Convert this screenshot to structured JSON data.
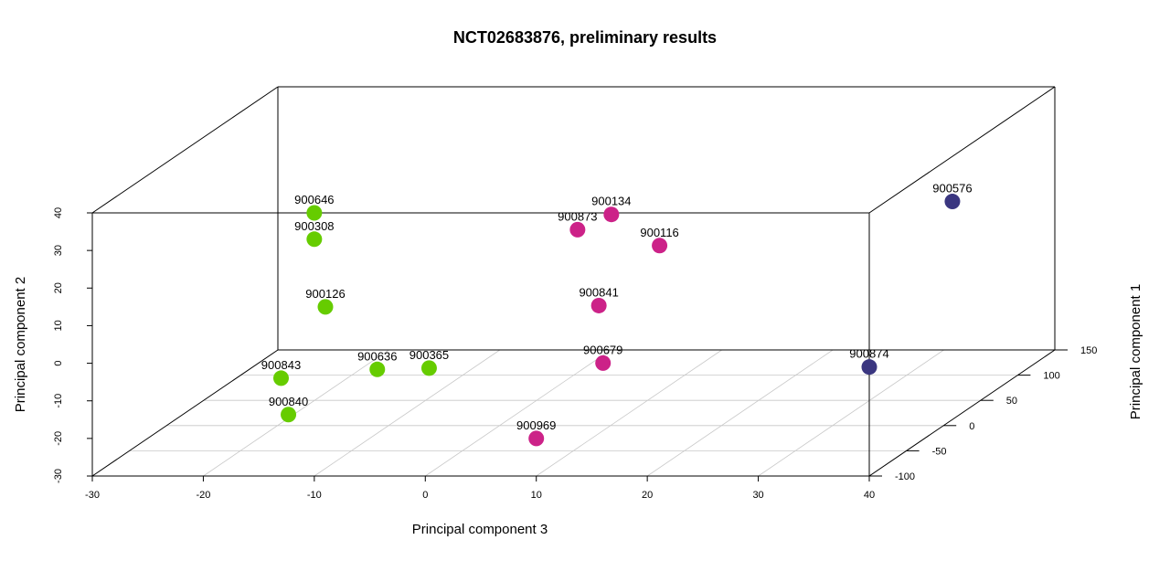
{
  "chart_data": {
    "type": "scatter3d",
    "title": "NCT02683876, preliminary results",
    "xlabel": "Principal component 3",
    "ylabel": "Principal component 2",
    "zlabel": "Principal component 1",
    "xlim": [
      -30,
      40
    ],
    "ylim": [
      -30,
      40
    ],
    "zlim": [
      -100,
      150
    ],
    "xticks": [
      -30,
      -20,
      -10,
      0,
      10,
      20,
      30,
      40
    ],
    "yticks": [
      -30,
      -20,
      -10,
      0,
      10,
      20,
      30,
      40
    ],
    "zticks": [
      -100,
      -50,
      0,
      50,
      100,
      150
    ],
    "grid": true,
    "colors": {
      "green": "#66cc00",
      "magenta": "#cc2288",
      "navy": "#3a3680"
    },
    "points": [
      {
        "label": "900873",
        "x": -3,
        "y": 2,
        "z": 150,
        "color": "magenta"
      },
      {
        "label": "900646",
        "x": -10,
        "y": 40,
        "z": -100,
        "color": "green"
      },
      {
        "label": "900308",
        "x": -10,
        "y": 33,
        "z": -100,
        "color": "green"
      },
      {
        "label": "900134",
        "x": 7,
        "y": 20,
        "z": 46,
        "color": "magenta"
      },
      {
        "label": "900116",
        "x": 8,
        "y": 5,
        "z": 96,
        "color": "magenta"
      },
      {
        "label": "900576",
        "x": 40,
        "y": 28,
        "z": 12,
        "color": "navy"
      },
      {
        "label": "900126",
        "x": -9,
        "y": 15,
        "z": -100,
        "color": "green"
      },
      {
        "label": "900841",
        "x": 4,
        "y": -8,
        "z": 74,
        "color": "magenta"
      },
      {
        "label": "900843",
        "x": -15,
        "y": -8,
        "z": -70,
        "color": "green"
      },
      {
        "label": "900874",
        "x": 40,
        "y": -1,
        "z": -100,
        "color": "navy"
      },
      {
        "label": "900636",
        "x": -7,
        "y": -7,
        "z": -60,
        "color": "green"
      },
      {
        "label": "900365",
        "x": -3,
        "y": -8,
        "z": -50,
        "color": "green"
      },
      {
        "label": "900679",
        "x": 12,
        "y": -8,
        "z": -40,
        "color": "magenta"
      },
      {
        "label": "900840",
        "x": -13,
        "y": -15,
        "z": -90,
        "color": "green"
      },
      {
        "label": "900969",
        "x": 10,
        "y": -20,
        "z": -100,
        "color": "magenta"
      }
    ]
  }
}
